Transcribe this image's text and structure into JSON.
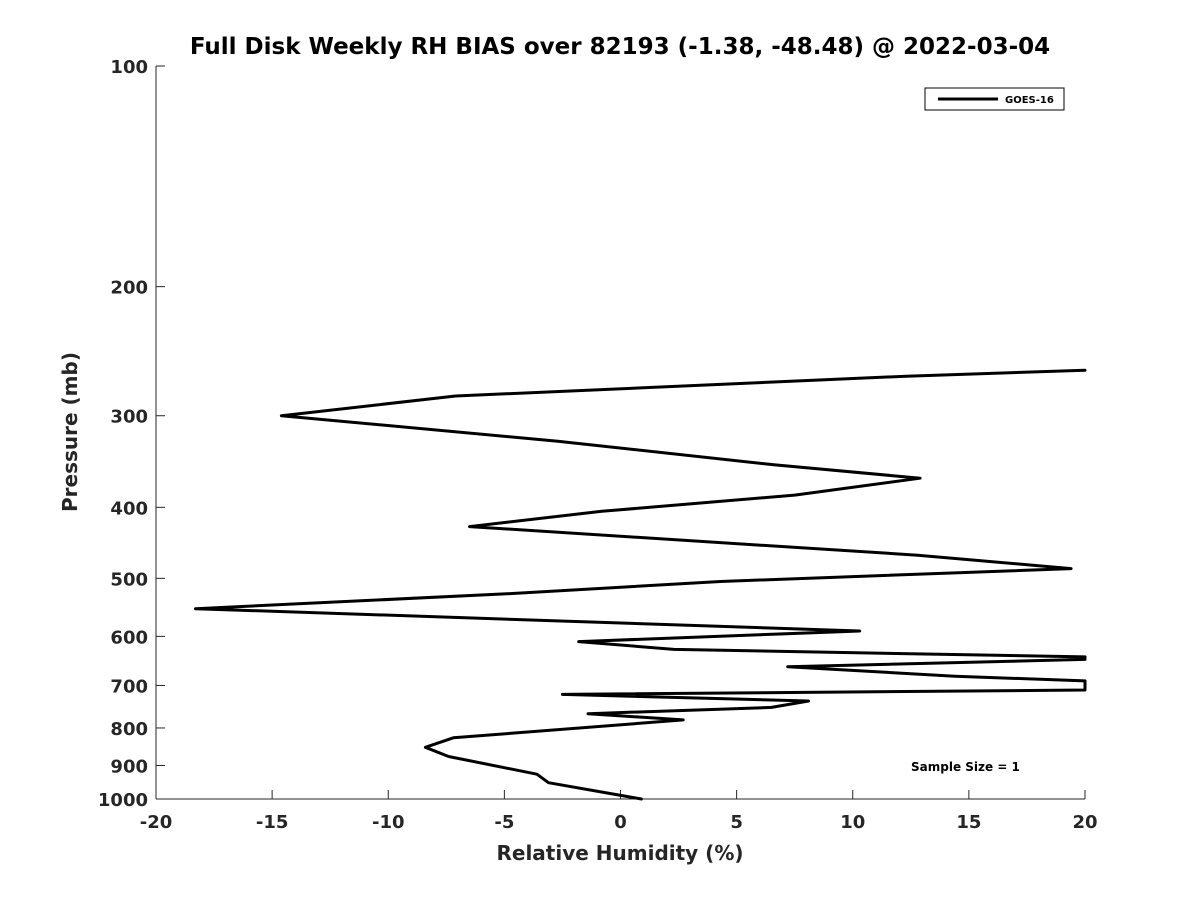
{
  "chart_data": {
    "type": "line",
    "title": "Full Disk Weekly RH BIAS over 82193 (-1.38, -48.48) @ 2022-03-04",
    "xlabel": "Relative Humidity (%)",
    "ylabel": "Pressure (mb)",
    "xlim": [
      -20,
      20
    ],
    "ylim": [
      100,
      1000
    ],
    "y_scale": "log",
    "y_reversed": true,
    "xticks": [
      -20,
      -15,
      -10,
      -5,
      0,
      5,
      10,
      15,
      20
    ],
    "yticks": [
      100,
      200,
      300,
      400,
      500,
      600,
      700,
      800,
      900,
      1000
    ],
    "grid": false,
    "legend": {
      "placement": "top-right",
      "entries": [
        "GOES-16"
      ]
    },
    "annotation": "Sample Size = 1",
    "series": [
      {
        "name": "GOES-16",
        "color": "#000000",
        "points": [
          [
            0.9,
            1000
          ],
          [
            -3.1,
            950
          ],
          [
            -3.6,
            925
          ],
          [
            -7.4,
            875
          ],
          [
            -8.4,
            850
          ],
          [
            -7.2,
            825
          ],
          [
            2.7,
            780
          ],
          [
            -1.4,
            765
          ],
          [
            6.5,
            750
          ],
          [
            8.1,
            735
          ],
          [
            -2.5,
            720
          ],
          [
            20,
            710
          ],
          [
            20,
            690
          ],
          [
            14.4,
            680
          ],
          [
            7.2,
            660
          ],
          [
            20,
            645
          ],
          [
            20,
            640
          ],
          [
            2.3,
            625
          ],
          [
            -1.8,
            610
          ],
          [
            10.3,
            590
          ],
          [
            -18.3,
            550
          ],
          [
            -5.0,
            525
          ],
          [
            4.3,
            505
          ],
          [
            19.4,
            485
          ],
          [
            12.8,
            465
          ],
          [
            -6.5,
            425
          ],
          [
            -0.8,
            405
          ],
          [
            7.5,
            385
          ],
          [
            12.9,
            365
          ],
          [
            6.6,
            350
          ],
          [
            -2.7,
            325
          ],
          [
            -14.6,
            300
          ],
          [
            -7.1,
            282
          ],
          [
            12.3,
            265
          ],
          [
            20,
            260
          ]
        ]
      }
    ]
  }
}
